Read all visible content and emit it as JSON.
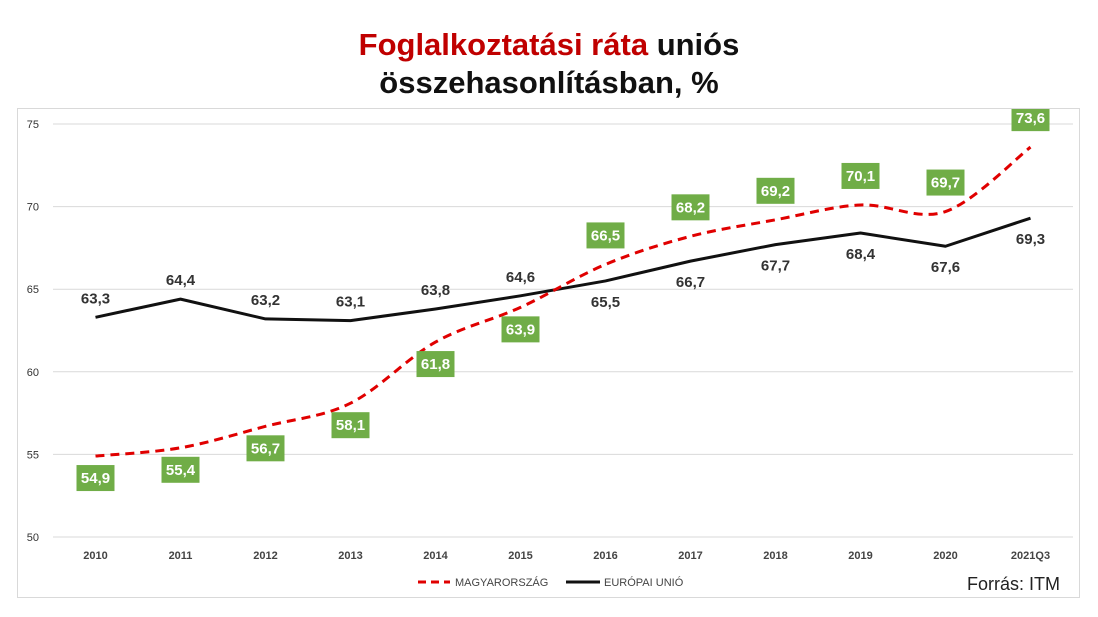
{
  "title": {
    "line1_red": "Foglalkoztatási ráta",
    "line1_black": "uniós",
    "line2": "összehasonlításban, %"
  },
  "source": "Forrás: ITM",
  "colors": {
    "hungary": "#e00000",
    "eu": "#111111",
    "label_box": "#70ad47",
    "grid": "#d9d9d9",
    "title_red": "#c00000"
  },
  "chart_data": {
    "type": "line",
    "categories": [
      "2010",
      "2011",
      "2012",
      "2013",
      "2014",
      "2015",
      "2016",
      "2017",
      "2018",
      "2019",
      "2020",
      "2021Q3"
    ],
    "ylim": [
      50,
      75
    ],
    "yticks": [
      50,
      55,
      60,
      65,
      70,
      75
    ],
    "series": [
      {
        "name": "MAGYARORSZÁG",
        "style": "dashed",
        "values": [
          54.9,
          55.4,
          56.7,
          58.1,
          61.8,
          63.9,
          66.5,
          68.2,
          69.2,
          70.1,
          69.7,
          73.6
        ],
        "labels": [
          "54,9",
          "55,4",
          "56,7",
          "58,1",
          "61,8",
          "63,9",
          "66,5",
          "68,2",
          "69,2",
          "70,1",
          "69,7",
          "73,6"
        ]
      },
      {
        "name": "EURÓPAI UNIÓ",
        "style": "solid",
        "values": [
          63.3,
          64.4,
          63.2,
          63.1,
          63.8,
          64.6,
          65.5,
          66.7,
          67.7,
          68.4,
          67.6,
          69.3
        ],
        "labels": [
          "63,3",
          "64,4",
          "63,2",
          "63,1",
          "63,8",
          "64,6",
          "65,5",
          "66,7",
          "67,7",
          "68,4",
          "67,6",
          "69,3"
        ]
      }
    ],
    "legend": "bottom-center",
    "grid": true
  }
}
